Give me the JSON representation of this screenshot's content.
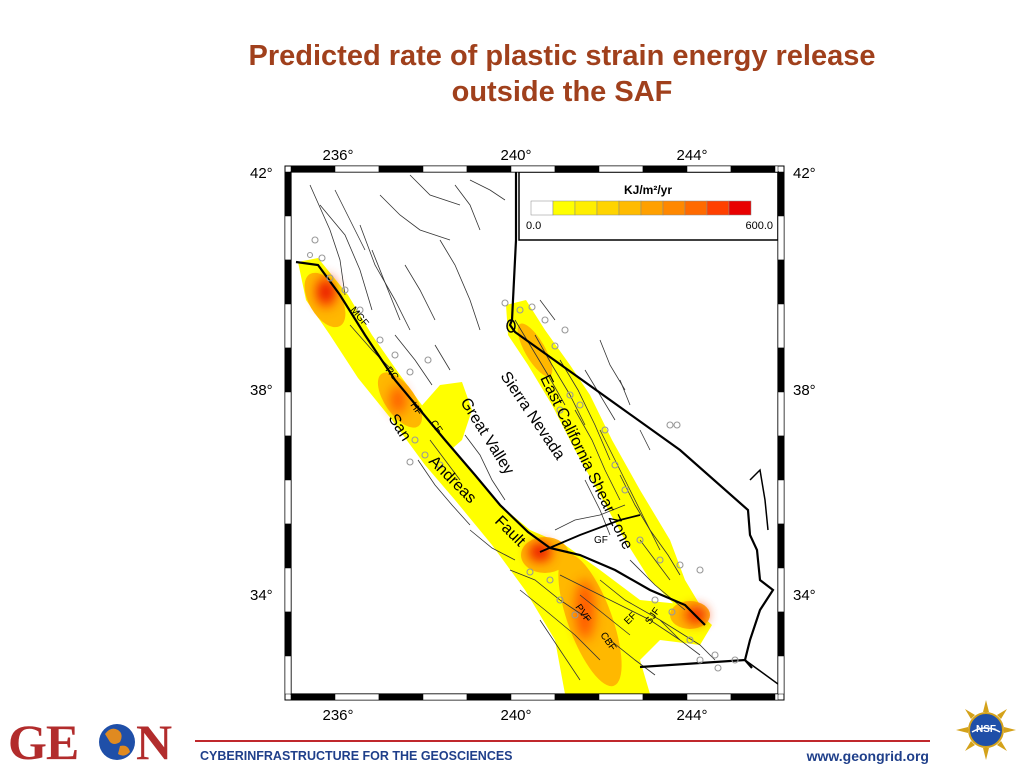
{
  "slide": {
    "title_line1": "Predicted rate of plastic strain energy release",
    "title_line2": "outside the SAF"
  },
  "map": {
    "lon_ticks": [
      "236°",
      "240°",
      "244°"
    ],
    "lat_ticks": [
      "42°",
      "38°",
      "34°"
    ],
    "legend": {
      "title": "KJ/m²/yr",
      "min_label": "0.0",
      "max_label": "600.0",
      "colors": [
        "#ffffff",
        "#ffff00",
        "#ffee00",
        "#ffd400",
        "#ffbb00",
        "#ffa000",
        "#ff8800",
        "#ff6a00",
        "#ff4000",
        "#e80000"
      ]
    },
    "region_labels": {
      "sierra": "Sierra Nevada",
      "great_valley": "Great Valley",
      "ecsz": "East California Shear Zone",
      "san": "San",
      "andreas": "Andreas",
      "fault": "Fault"
    },
    "fault_labels": {
      "mgf": "MGF",
      "rc": "RC",
      "hf": "HF",
      "cf": "CF",
      "gf": "GF",
      "pvf": "PVF",
      "cbf": "CBF",
      "ef": "EF",
      "sjf": "SJF"
    }
  },
  "footer": {
    "left_text": "CYBERINFRASTRUCTURE FOR THE GEOSCIENCES",
    "right_text": "www.geongrid.org",
    "logo_left": "GE N",
    "logo_right": "NSF"
  }
}
